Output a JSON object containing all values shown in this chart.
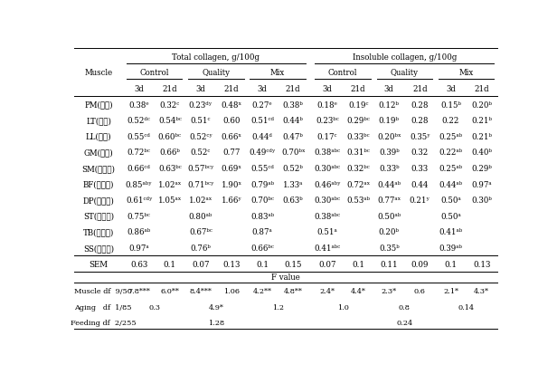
{
  "title_left": "Total collagen, g/100g",
  "title_right": "Insoluble collagen, g/100g",
  "col_muscle": "Muscle",
  "subheaders_left": [
    "Control",
    "Quality",
    "Mix"
  ],
  "subheaders_right": [
    "Control",
    "Quality",
    "Mix"
  ],
  "subsubheaders": [
    "3d",
    "21d",
    "3d",
    "21d",
    "3d",
    "21d",
    "3d",
    "21d",
    "3d",
    "21d",
    "3d",
    "21d"
  ],
  "muscles": [
    "PM(안심)",
    "LT(등심)",
    "LL(체근)",
    "GM(보심)",
    "SM(우둥살)",
    "BF(설짃살)",
    "DP(엃진살)",
    "ST(홍두제)",
    "TB(목심살)",
    "SS(꽀리살)"
  ],
  "data": [
    [
      "0.38ᵉ",
      "0.32ᶜ",
      "0.23ᵈʸ",
      "0.48ˣ",
      "0.27ᵉ",
      "0.38ᵇ",
      "0.18ᵉ",
      "0.19ᶜ",
      "0.12ᵇ",
      "0.28",
      "0.15ᵇ",
      "0.20ᵇ"
    ],
    [
      "0.52ᵈᶜ",
      "0.54ᵇᶜ",
      "0.51ᶜ",
      "0.60",
      "0.51ᶜᵈ",
      "0.44ᵇ",
      "0.23ᵇᶜ",
      "0.29ᵇᶜ",
      "0.19ᵇ",
      "0.28",
      "0.22",
      "0.21ᵇ"
    ],
    [
      "0.55ᶜᵈ",
      "0.60ᵇᶜ",
      "0.52ᶜʸ",
      "0.66ˣ",
      "0.44ᵈ",
      "0.47ᵇ",
      "0.17ᶜ",
      "0.33ᵇᶜ",
      "0.20ᵇˣ",
      "0.35ʸ",
      "0.25ᵃᵇ",
      "0.21ᵇ"
    ],
    [
      "0.72ᵇᶜ",
      "0.66ᵇ",
      "0.52ᶜ",
      "0.77",
      "0.49ᶜᵈʸ",
      "0.70ᵇˣ",
      "0.38ᵃᵇᶜ",
      "0.31ᵇᶜ",
      "0.39ᵇ",
      "0.32",
      "0.22ᵃᵇ",
      "0.40ᵇ"
    ],
    [
      "0.66ᶜᵈ",
      "0.63ᵇᶜ",
      "0.57ᵇᶜʸ",
      "0.69ˣ",
      "0.55ᶜᵈ",
      "0.52ᵇ",
      "0.30ᵃᵇᶜ",
      "0.32ᵇᶜ",
      "0.33ᵇ",
      "0.33",
      "0.25ᵃᵇ",
      "0.29ᵇ"
    ],
    [
      "0.85ᵃᵇʸ",
      "1.02ᵃˣ",
      "0.71ᵇᶜʸ",
      "1.90ˣ",
      "0.79ᵃᵇ",
      "1.33ᵃ",
      "0.46ᵃᵇʸ",
      "0.72ᵃˣ",
      "0.44ᵃᵇ",
      "0.44",
      "0.44ᵃᵇ",
      "0.97ᵃ"
    ],
    [
      "0.61ᶜᵈʸ",
      "1.05ᵃˣ",
      "1.02ᵃˣ",
      "1.66ʸ",
      "0.70ᵇᶜ",
      "0.63ᵇ",
      "0.30ᵃᵇᶜ",
      "0.53ᵃᵇ",
      "0.77ᵃˣ",
      "0.21ʸ",
      "0.50ᵃ",
      "0.30ᵇ"
    ],
    [
      "0.75ᵇᶜ",
      "",
      "0.80ᵃᵇ",
      "",
      "0.83ᵃᵇ",
      "",
      "0.38ᵃᵇᶜ",
      "",
      "0.50ᵃᵇ",
      "",
      "0.50ᵃ",
      ""
    ],
    [
      "0.86ᵃᵇ",
      "",
      "0.67ᵇᶜ",
      "",
      "0.87ᵃ",
      "",
      "0.51ᵃ",
      "",
      "0.20ᵇ",
      "",
      "0.41ᵃᵇ",
      ""
    ],
    [
      "0.97ᵃ",
      "",
      "0.76ᵇ",
      "",
      "0.66ᵇᶜ",
      "",
      "0.41ᵃᵇᶜ",
      "",
      "0.35ᵇ",
      "",
      "0.39ᵃᵇ",
      ""
    ]
  ],
  "sem_row": [
    "SEM",
    "0.63",
    "0.1",
    "0.07",
    "0.13",
    "0.1",
    "0.15",
    "0.07",
    "0.1",
    "0.11",
    "0.09",
    "0.1",
    "0.13"
  ],
  "fvalue_label": "F value",
  "muscle_row_label": "Muscle df  9/50",
  "muscle_row_vals": [
    "7.8***",
    "6.0**",
    "8.4***",
    "1.06",
    "4.2**",
    "4.8**",
    "2.4*",
    "4.4*",
    "2.3*",
    "0.6",
    "2.1*",
    "4.3*"
  ],
  "aging_row_label": "Aging   df  1/85",
  "aging_row_vals": [
    "0.3",
    "4.9*",
    "1.2",
    "1.0",
    "0.8",
    "0.14"
  ],
  "feeding_row_label": "Feeding df  2/255",
  "feeding_row_vals": [
    "1.28",
    "0.24"
  ],
  "bg_color": "#ffffff",
  "text_color": "#000000",
  "font_size": 6.2
}
